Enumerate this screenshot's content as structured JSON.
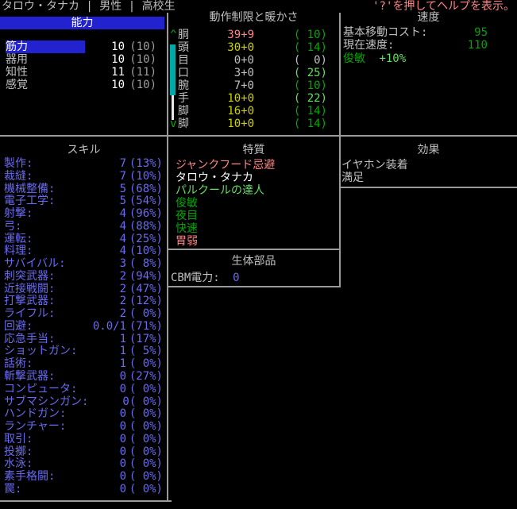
{
  "title_bar": {
    "text": "タロウ・タナカ | 男性 | 高校生",
    "help": "'?'を押してヘルプを表示。"
  },
  "palette": {
    "background": "#000000",
    "text_gray": "#c0c0c0",
    "white": "#ffffff",
    "light_red": "#ff8585",
    "yellow": "#cfcf00",
    "green": "#00a800",
    "light_green": "#61e061",
    "light_blue": "#6a6af2",
    "cyan": "#00a8a8",
    "selection_blue": "#2222cf",
    "border_gray": "#9a9a9a"
  },
  "abilities": {
    "header": "能力",
    "rows": [
      {
        "label": "筋力",
        "value": "10",
        "paren": "(10)",
        "selected": true
      },
      {
        "label": "器用",
        "value": "10",
        "paren": "(10)",
        "selected": false
      },
      {
        "label": "知性",
        "value": "11",
        "paren": "(11)",
        "selected": false
      },
      {
        "label": "感覚",
        "value": "10",
        "paren": "(10)",
        "selected": false
      }
    ]
  },
  "encumbrance": {
    "header": "動作制限と暖かさ",
    "up_caret": "^",
    "down_caret": "v",
    "rows": [
      {
        "part": "胴",
        "enc": "39+9",
        "enc_color": "lightred",
        "warmth": "( 10)",
        "warmth_color": "green"
      },
      {
        "part": "頭",
        "enc": "30+0",
        "enc_color": "yellow",
        "warmth": "( 14)",
        "warmth_color": "green"
      },
      {
        "part": "目",
        "enc": "0+0",
        "enc_color": "gray",
        "warmth": "(  0)",
        "warmth_color": "gray"
      },
      {
        "part": "口",
        "enc": "3+0",
        "enc_color": "gray",
        "warmth": "( 25)",
        "warmth_color": "lightgreen"
      },
      {
        "part": "腕",
        "enc": "7+0",
        "enc_color": "gray",
        "warmth": "( 10)",
        "warmth_color": "green"
      },
      {
        "part": "手",
        "enc": "10+0",
        "enc_color": "yellow",
        "warmth": "( 22)",
        "warmth_color": "lightgreen"
      },
      {
        "part": "脚",
        "enc": "16+0",
        "enc_color": "yellow",
        "warmth": "( 14)",
        "warmth_color": "green"
      },
      {
        "part": "脚",
        "enc": "10+0",
        "enc_color": "yellow",
        "warmth": "( 14)",
        "warmth_color": "green"
      }
    ]
  },
  "speed": {
    "header": "速度",
    "rows": [
      {
        "label": "基本移動コスト:",
        "value": "95"
      },
      {
        "label": "現在速度:",
        "value": "110"
      }
    ],
    "modifiers": [
      {
        "label": "俊敏",
        "value": "+10%"
      }
    ]
  },
  "skills": {
    "header": "スキル",
    "rows": [
      {
        "label": "製作:",
        "value": "7",
        "pct": "(13%)"
      },
      {
        "label": "裁縫:",
        "value": "7",
        "pct": "(10%)"
      },
      {
        "label": "機械整備:",
        "value": "5",
        "pct": "(68%)"
      },
      {
        "label": "電子工学:",
        "value": "5",
        "pct": "(54%)"
      },
      {
        "label": "射撃:",
        "value": "4",
        "pct": "(96%)"
      },
      {
        "label": "弓:",
        "value": "4",
        "pct": "(88%)"
      },
      {
        "label": "運転:",
        "value": "4",
        "pct": "(25%)"
      },
      {
        "label": "料理:",
        "value": "4",
        "pct": "(10%)"
      },
      {
        "label": "サバイバル:",
        "value": "3",
        "pct": "( 8%)"
      },
      {
        "label": "刺突武器:",
        "value": "2",
        "pct": "(94%)"
      },
      {
        "label": "近接戦闘:",
        "value": "2",
        "pct": "(47%)"
      },
      {
        "label": "打撃武器:",
        "value": "2",
        "pct": "(12%)"
      },
      {
        "label": "ライフル:",
        "value": "2",
        "pct": "( 0%)"
      },
      {
        "label": "回避:",
        "value": "0.0/1",
        "pct": "(71%)"
      },
      {
        "label": "応急手当:",
        "value": "1",
        "pct": "(17%)"
      },
      {
        "label": "ショットガン:",
        "value": "1",
        "pct": "( 5%)"
      },
      {
        "label": "話術:",
        "value": "1",
        "pct": "( 0%)"
      },
      {
        "label": "斬撃武器:",
        "value": "0",
        "pct": "(27%)"
      },
      {
        "label": "コンピュータ:",
        "value": "0",
        "pct": "( 0%)"
      },
      {
        "label": "サブマシンガン:",
        "value": "0",
        "pct": "( 0%)"
      },
      {
        "label": "ハンドガン:",
        "value": "0",
        "pct": "( 0%)"
      },
      {
        "label": "ランチャー:",
        "value": "0",
        "pct": "( 0%)"
      },
      {
        "label": "取引:",
        "value": "0",
        "pct": "( 0%)"
      },
      {
        "label": "投擲:",
        "value": "0",
        "pct": "( 0%)"
      },
      {
        "label": "水泳:",
        "value": "0",
        "pct": "( 0%)"
      },
      {
        "label": "素手格闘:",
        "value": "0",
        "pct": "( 0%)"
      },
      {
        "label": "罠:",
        "value": "0",
        "pct": "( 0%)"
      }
    ]
  },
  "traits": {
    "header": "特質",
    "items": [
      {
        "name": "ジャンクフード忌避",
        "color": "lightred"
      },
      {
        "name": "タロウ・タナカ",
        "color": "white"
      },
      {
        "name": "パルクールの達人",
        "color": "lightgreen"
      },
      {
        "name": "俊敏",
        "color": "green"
      },
      {
        "name": "夜目",
        "color": "green"
      },
      {
        "name": "快速",
        "color": "green"
      },
      {
        "name": "胃弱",
        "color": "lightred"
      }
    ]
  },
  "bionics": {
    "header": "生体部品",
    "power_label": "CBM電力:",
    "power_value": "0"
  },
  "effects": {
    "header": "効果",
    "items": [
      "イヤホン装着",
      "満足"
    ]
  }
}
